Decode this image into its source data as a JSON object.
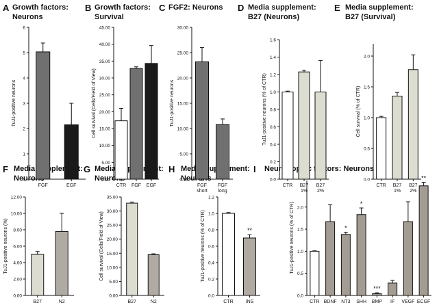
{
  "colors": {
    "white_bar": "#ffffff",
    "gray_bar": "#707070",
    "black_bar": "#1a1a1a",
    "light_bar": "#dcdcd0",
    "mid_bar": "#b0aba2",
    "axis": "#111111"
  },
  "chart_data": [
    {
      "letter": "A",
      "title_lines": [
        "Growth factors:",
        "Neurons"
      ],
      "type": "bar",
      "ylabel": "TuJ1-positive neurons",
      "ylim": [
        0,
        6
      ],
      "yticks": [
        "0",
        "1",
        "2",
        "3",
        "4",
        "5",
        "6"
      ],
      "categories": [
        [
          "FGF"
        ],
        [
          "EGF"
        ]
      ],
      "values": [
        5.03,
        2.15
      ],
      "errors": [
        0.35,
        0.85
      ],
      "colors": [
        "#707070",
        "#1a1a1a"
      ],
      "stars": [
        "",
        ""
      ]
    },
    {
      "letter": "B",
      "title_lines": [
        "Growth factors:",
        "Survival"
      ],
      "type": "bar",
      "ylabel": "Cell survival (Cells/Field of View)",
      "ylim": [
        0,
        45
      ],
      "yticks": [
        "0.00",
        "5.00",
        "10.00",
        "15.00",
        "20.00",
        "25.00",
        "30.00",
        "35.00",
        "40.00",
        "45.00"
      ],
      "categories": [
        [
          "CTR"
        ],
        [
          "FGF"
        ],
        [
          "EGF"
        ]
      ],
      "values": [
        17.3,
        32.8,
        34.3
      ],
      "errors": [
        3.7,
        0.5,
        5.3
      ],
      "colors": [
        "#ffffff",
        "#707070",
        "#1a1a1a"
      ],
      "stars": [
        "",
        "",
        ""
      ]
    },
    {
      "letter": "C",
      "title_lines": [
        "FGF2: Neurons"
      ],
      "type": "bar",
      "ylabel": "TuJ1-positive neurons",
      "ylim": [
        0,
        30
      ],
      "yticks": [
        "0.00",
        "5.00",
        "10.00",
        "15.00",
        "20.00",
        "25.00",
        "30.00"
      ],
      "categories": [
        [
          "FGF",
          "short"
        ],
        [
          "FGF",
          "long"
        ]
      ],
      "values": [
        23.2,
        10.8
      ],
      "errors": [
        2.8,
        1.1
      ],
      "colors": [
        "#707070",
        "#707070"
      ],
      "stars": [
        "",
        ""
      ]
    },
    {
      "letter": "D",
      "title_lines": [
        "Media supplement:",
        "B27 (Neurons)"
      ],
      "type": "bar",
      "ylabel": "TuJ1-positive neurons (% of CTR)",
      "ylim": [
        0,
        1.6
      ],
      "yticks": [
        "0.0",
        "0.2",
        "0.4",
        "0.6",
        "0.8",
        "1.0",
        "1.2",
        "1.4",
        "1.6"
      ],
      "categories": [
        [
          "CTR"
        ],
        [
          "B27",
          "1%"
        ],
        [
          "B27",
          "2%"
        ]
      ],
      "values": [
        1.0,
        1.23,
        1.0
      ],
      "errors": [
        0.01,
        0.02,
        0.36
      ],
      "colors": [
        "#ffffff",
        "#dcdcd0",
        "#dcdcd0"
      ],
      "stars": [
        "",
        "",
        ""
      ]
    },
    {
      "letter": "E",
      "title_lines": [
        "Media supplement:",
        "B27 (Survival)"
      ],
      "type": "bar",
      "ylabel": "Cell survival (% of CTR)",
      "ylim": [
        0,
        2.2
      ],
      "yticks": [
        "0.0",
        "0.5",
        "1.0",
        "1.5",
        "2.0"
      ],
      "categories": [
        [
          "CTR"
        ],
        [
          "B27",
          "1%"
        ],
        [
          "B27",
          "2%"
        ]
      ],
      "values": [
        1.0,
        1.35,
        1.78
      ],
      "errors": [
        0.02,
        0.06,
        0.24
      ],
      "colors": [
        "#ffffff",
        "#dcdcd0",
        "#dcdcd0"
      ],
      "stars": [
        "",
        "",
        ""
      ]
    },
    {
      "letter": "F",
      "title_lines": [
        "Media Supplement:",
        "Neurons"
      ],
      "type": "bar",
      "ylabel": "TuJ1-positive neurons (%)",
      "ylim": [
        0,
        12
      ],
      "yticks": [
        "0.00",
        "2.00",
        "4.00",
        "6.00",
        "8.00",
        "10.00",
        "12.00"
      ],
      "categories": [
        [
          "B27"
        ],
        [
          "N2"
        ]
      ],
      "values": [
        5.0,
        7.8
      ],
      "errors": [
        0.35,
        2.2
      ],
      "colors": [
        "#dcdcd0",
        "#b0aba2"
      ],
      "stars": [
        "",
        ""
      ]
    },
    {
      "letter": "G",
      "title_lines": [
        "Media Supplement:",
        "Neurons"
      ],
      "type": "bar",
      "ylabel": "Cell survival (Cells/Field of View)",
      "ylim": [
        0,
        35
      ],
      "yticks": [
        "0.00",
        "5.00",
        "10.00",
        "15.00",
        "20.00",
        "25.00",
        "30.00",
        "35.00"
      ],
      "categories": [
        [
          "B27"
        ],
        [
          "N2"
        ]
      ],
      "values": [
        32.8,
        14.5
      ],
      "errors": [
        0.4,
        0.3
      ],
      "colors": [
        "#dcdcd0",
        "#b0aba2"
      ],
      "stars": [
        "",
        ""
      ]
    },
    {
      "letter": "H",
      "title_lines": [
        "Media Supplement:",
        "Neurons"
      ],
      "type": "bar",
      "ylabel": "TuJ1-positive neurons (% of CTR)",
      "ylim": [
        0,
        1.2
      ],
      "yticks": [
        "0.0",
        "0.2",
        "0.4",
        "0.6",
        "0.8",
        "1.0",
        "1.2"
      ],
      "categories": [
        [
          "CTR"
        ],
        [
          "INS"
        ]
      ],
      "values": [
        1.0,
        0.7
      ],
      "errors": [
        0.01,
        0.04
      ],
      "colors": [
        "#ffffff",
        "#b0aba2"
      ],
      "stars": [
        "",
        "**"
      ]
    },
    {
      "letter": "I",
      "title_lines": [
        "Neurotrophic factors: Neurons"
      ],
      "type": "bar",
      "ylabel": "TuJ1-positive neurons (% of CTR)",
      "ylim": [
        0,
        2.6
      ],
      "yticks": [
        "0.0",
        "0.5",
        "1.0",
        "1.5",
        "2.0"
      ],
      "categories": [
        [
          "CTR"
        ],
        [
          "BDNF"
        ],
        [
          "NT3"
        ],
        [
          "SHH"
        ],
        [
          "BMP"
        ],
        [
          "IF"
        ],
        [
          "VEGF"
        ],
        [
          "ECGF"
        ]
      ],
      "values": [
        1.0,
        1.67,
        1.38,
        1.83,
        0.04,
        0.28,
        1.67,
        2.48
      ],
      "errors": [
        0.01,
        0.38,
        0.05,
        0.15,
        0.02,
        0.06,
        0.45,
        0.08
      ],
      "colors": [
        "#ffffff",
        "#a39c93",
        "#a39c93",
        "#a39c93",
        "#a39c93",
        "#a39c93",
        "#a39c93",
        "#a39c93"
      ],
      "stars": [
        "",
        "",
        "*",
        "*",
        "***",
        "",
        "",
        "**"
      ]
    }
  ]
}
